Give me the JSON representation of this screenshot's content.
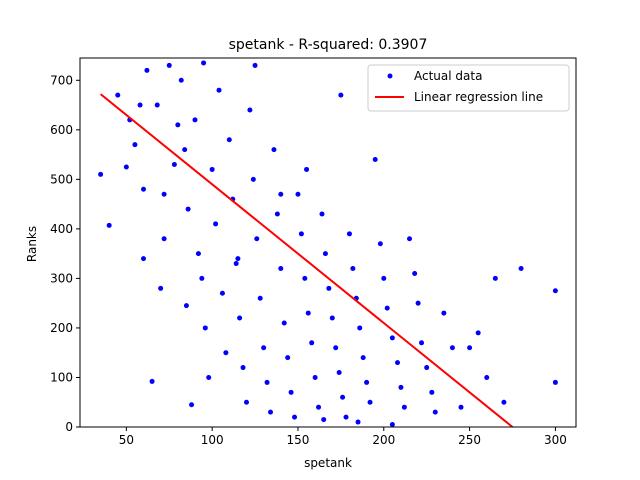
{
  "chart_data": {
    "type": "scatter",
    "title": "spetank - R-squared: 0.3907",
    "xlabel": "spetank",
    "ylabel": "Ranks",
    "xlim": [
      23,
      312
    ],
    "ylim": [
      0,
      745
    ],
    "xticks": [
      50,
      100,
      150,
      200,
      250,
      300
    ],
    "yticks": [
      0,
      100,
      200,
      300,
      400,
      500,
      600,
      700
    ],
    "legend_position": "top-right",
    "grid": false,
    "colors": {
      "points": "#0000ff",
      "line": "#ff0000"
    },
    "series": [
      {
        "name": "Actual data",
        "kind": "scatter",
        "points": [
          [
            35,
            510
          ],
          [
            40,
            407
          ],
          [
            45,
            670
          ],
          [
            50,
            525
          ],
          [
            52,
            620
          ],
          [
            55,
            570
          ],
          [
            58,
            650
          ],
          [
            60,
            340
          ],
          [
            62,
            720
          ],
          [
            65,
            92
          ],
          [
            68,
            650
          ],
          [
            70,
            280
          ],
          [
            72,
            470
          ],
          [
            75,
            730
          ],
          [
            78,
            530
          ],
          [
            80,
            610
          ],
          [
            82,
            700
          ],
          [
            84,
            560
          ],
          [
            86,
            440
          ],
          [
            88,
            45
          ],
          [
            90,
            620
          ],
          [
            92,
            350
          ],
          [
            94,
            300
          ],
          [
            96,
            200
          ],
          [
            98,
            100
          ],
          [
            100,
            520
          ],
          [
            102,
            410
          ],
          [
            104,
            680
          ],
          [
            106,
            270
          ],
          [
            108,
            150
          ],
          [
            110,
            580
          ],
          [
            112,
            460
          ],
          [
            114,
            330
          ],
          [
            116,
            220
          ],
          [
            118,
            120
          ],
          [
            120,
            50
          ],
          [
            122,
            640
          ],
          [
            124,
            500
          ],
          [
            126,
            380
          ],
          [
            128,
            260
          ],
          [
            130,
            160
          ],
          [
            132,
            90
          ],
          [
            134,
            30
          ],
          [
            136,
            560
          ],
          [
            138,
            430
          ],
          [
            140,
            320
          ],
          [
            142,
            210
          ],
          [
            144,
            140
          ],
          [
            146,
            70
          ],
          [
            148,
            20
          ],
          [
            150,
            470
          ],
          [
            152,
            390
          ],
          [
            154,
            300
          ],
          [
            156,
            230
          ],
          [
            158,
            170
          ],
          [
            160,
            100
          ],
          [
            162,
            40
          ],
          [
            164,
            430
          ],
          [
            166,
            350
          ],
          [
            168,
            280
          ],
          [
            170,
            220
          ],
          [
            172,
            160
          ],
          [
            174,
            110
          ],
          [
            176,
            60
          ],
          [
            178,
            20
          ],
          [
            180,
            390
          ],
          [
            182,
            320
          ],
          [
            184,
            260
          ],
          [
            186,
            200
          ],
          [
            188,
            140
          ],
          [
            190,
            90
          ],
          [
            192,
            50
          ],
          [
            195,
            540
          ],
          [
            198,
            370
          ],
          [
            200,
            300
          ],
          [
            202,
            240
          ],
          [
            205,
            180
          ],
          [
            208,
            130
          ],
          [
            210,
            80
          ],
          [
            212,
            40
          ],
          [
            215,
            380
          ],
          [
            218,
            310
          ],
          [
            220,
            250
          ],
          [
            222,
            170
          ],
          [
            225,
            120
          ],
          [
            228,
            70
          ],
          [
            230,
            30
          ],
          [
            235,
            230
          ],
          [
            240,
            160
          ],
          [
            245,
            40
          ],
          [
            250,
            160
          ],
          [
            255,
            190
          ],
          [
            260,
            100
          ],
          [
            265,
            300
          ],
          [
            270,
            50
          ],
          [
            280,
            320
          ],
          [
            300,
            275
          ],
          [
            300,
            90
          ],
          [
            85,
            245
          ],
          [
            115,
            340
          ],
          [
            125,
            730
          ],
          [
            140,
            470
          ],
          [
            155,
            520
          ],
          [
            165,
            15
          ],
          [
            175,
            670
          ],
          [
            185,
            10
          ],
          [
            205,
            5
          ],
          [
            95,
            735
          ],
          [
            60,
            480
          ],
          [
            72,
            380
          ]
        ]
      },
      {
        "name": "Linear regression line",
        "kind": "line",
        "x": [
          35,
          275
        ],
        "y": [
          672,
          0
        ]
      }
    ]
  }
}
